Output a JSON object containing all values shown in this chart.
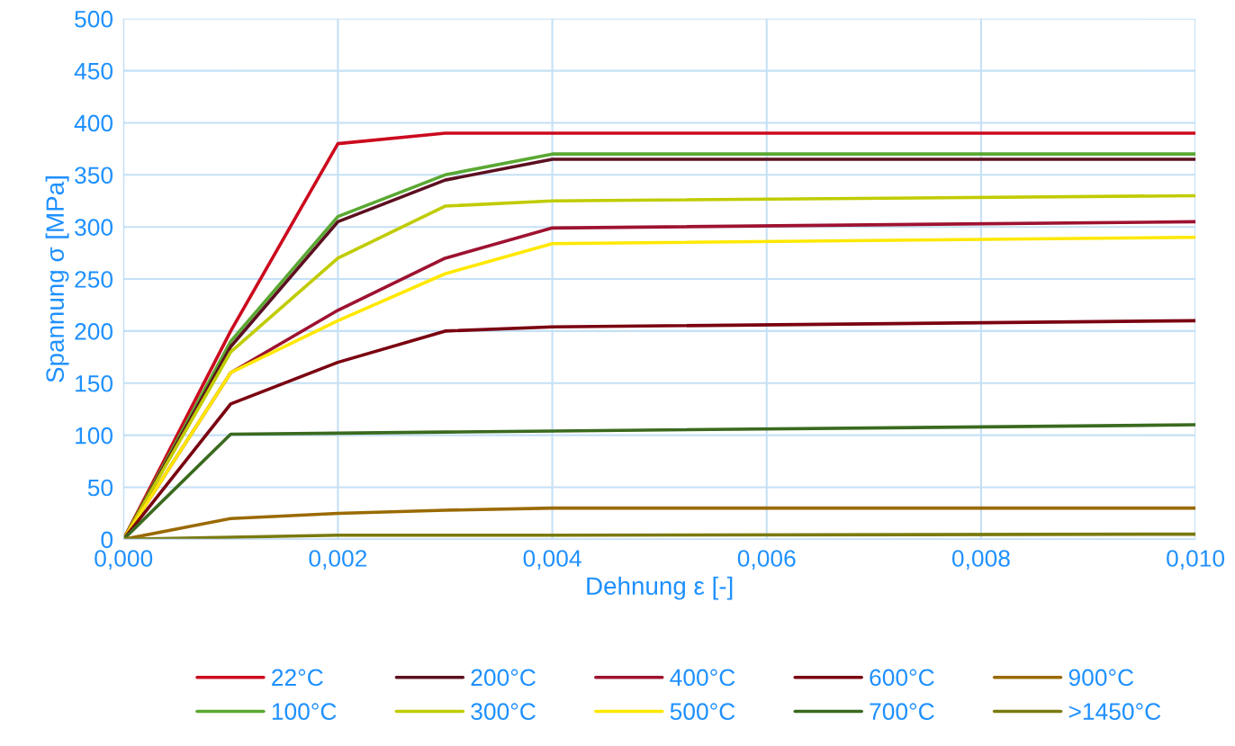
{
  "chart_data": {
    "type": "line",
    "xlabel": "Dehnung ε [-]",
    "ylabel": "Spannung σ [MPa]",
    "x": [
      0,
      0.001,
      0.002,
      0.003,
      0.004,
      0.01
    ],
    "xlim": [
      0,
      0.01
    ],
    "xticks": [
      {
        "value": 0,
        "label": "0,000"
      },
      {
        "value": 0.002,
        "label": "0,002"
      },
      {
        "value": 0.004,
        "label": "0,004"
      },
      {
        "value": 0.006,
        "label": "0,006"
      },
      {
        "value": 0.008,
        "label": "0,008"
      },
      {
        "value": 0.01,
        "label": "0,010"
      }
    ],
    "ylim": [
      0,
      500
    ],
    "yticks": [
      0,
      50,
      100,
      150,
      200,
      250,
      300,
      350,
      400,
      450,
      500
    ],
    "grid": true,
    "legend": "bottom",
    "marker": "none",
    "line_style": "solid",
    "series": [
      {
        "name": "22°C",
        "color": "#cc0a1e",
        "values": [
          0,
          200,
          380,
          390,
          390,
          390
        ]
      },
      {
        "name": "100°C",
        "color": "#5aa832",
        "values": [
          0,
          190,
          310,
          350,
          370,
          370
        ]
      },
      {
        "name": "200°C",
        "color": "#5c1020",
        "values": [
          0,
          185,
          305,
          345,
          365,
          365
        ]
      },
      {
        "name": "300°C",
        "color": "#c0cc00",
        "values": [
          0,
          180,
          270,
          320,
          325,
          330
        ]
      },
      {
        "name": "400°C",
        "color": "#9e1230",
        "values": [
          0,
          160,
          220,
          270,
          299,
          305
        ]
      },
      {
        "name": "500°C",
        "color": "#ffe800",
        "values": [
          0,
          160,
          210,
          255,
          284,
          290
        ]
      },
      {
        "name": "600°C",
        "color": "#7a0010",
        "values": [
          0,
          130,
          170,
          200,
          204,
          210
        ]
      },
      {
        "name": "700°C",
        "color": "#3a6a1e",
        "values": [
          0,
          101,
          102,
          103,
          104,
          110
        ]
      },
      {
        "name": "900°C",
        "color": "#9a6a00",
        "values": [
          0,
          20,
          25,
          28,
          30,
          30
        ]
      },
      {
        "name": ">1450°C",
        "color": "#7a7a10",
        "values": [
          0,
          2,
          4,
          4,
          4,
          5
        ]
      }
    ]
  }
}
